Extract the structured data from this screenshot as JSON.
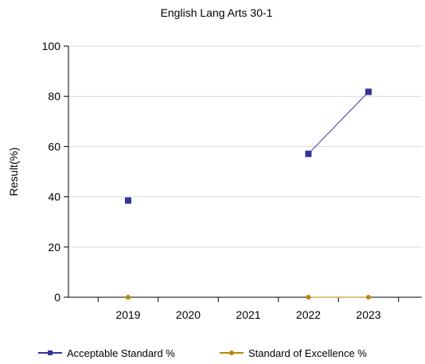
{
  "chart_data": {
    "type": "line",
    "title": "English Lang Arts 30-1",
    "xlabel": "",
    "ylabel": "Result(%)",
    "categories": [
      "2019",
      "2020",
      "2021",
      "2022",
      "2023"
    ],
    "ylim": [
      0,
      100
    ],
    "yticks": [
      0,
      20,
      40,
      60,
      80,
      100
    ],
    "grid": "horizontal",
    "legend_position": "bottom",
    "series": [
      {
        "name": "Acceptable Standard %",
        "color": "#333399",
        "marker": "square",
        "values": [
          38.5,
          null,
          null,
          57.1,
          81.8
        ]
      },
      {
        "name": "Standard of Excellence %",
        "color": "#b8860b",
        "marker": "circle",
        "values": [
          0,
          null,
          null,
          0,
          0
        ]
      }
    ]
  }
}
